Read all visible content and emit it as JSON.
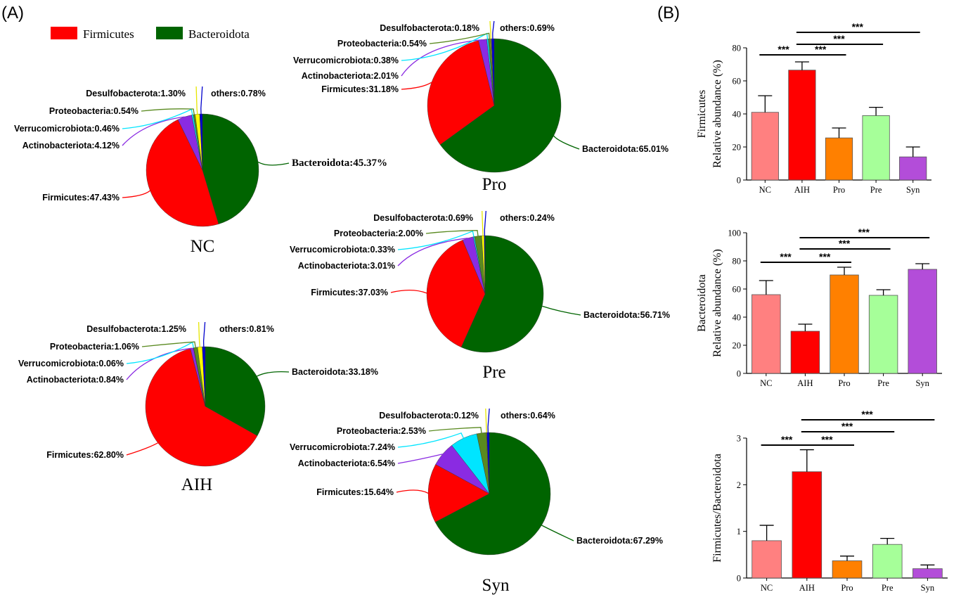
{
  "panels": {
    "a": "(A)",
    "b": "(B)"
  },
  "legend": [
    {
      "name": "Firmicutes",
      "color": "#ff0000"
    },
    {
      "name": "Bacteroidota",
      "color": "#006400"
    }
  ],
  "colors": {
    "Firmicutes": "#ff0000",
    "Bacteroidota": "#006400",
    "Actinobacteriota": "#8a2be2",
    "Verrucomicrobiota": "#00e5ff",
    "Proteobacteria": "#5a8a20",
    "Desulfobacterota": "#ffff00",
    "others": "#0000cd"
  },
  "chart_data": [
    {
      "type": "pie",
      "title": "NC",
      "slices": [
        {
          "label": "Bacteroidota:45.37%",
          "name": "Bacteroidota",
          "value": 45.37
        },
        {
          "label": "Firmicutes:47.43%",
          "name": "Firmicutes",
          "value": 47.43
        },
        {
          "label": "Actinobacteriota:4.12%",
          "name": "Actinobacteriota",
          "value": 4.12
        },
        {
          "label": "Verrucomicrobiota:0.46%",
          "name": "Verrucomicrobiota",
          "value": 0.46
        },
        {
          "label": "Proteobacteria:0.54%",
          "name": "Proteobacteria",
          "value": 0.54
        },
        {
          "label": "Desulfobacterota:1.30%",
          "name": "Desulfobacterota",
          "value": 1.3
        },
        {
          "label": "others:0.78%",
          "name": "others",
          "value": 0.78
        }
      ]
    },
    {
      "type": "pie",
      "title": "AIH",
      "slices": [
        {
          "label": "Bacteroidota:33.18%",
          "name": "Bacteroidota",
          "value": 33.18
        },
        {
          "label": "Firmicutes:62.80%",
          "name": "Firmicutes",
          "value": 62.8
        },
        {
          "label": "Actinobacteriota:0.84%",
          "name": "Actinobacteriota",
          "value": 0.84
        },
        {
          "label": "Verrucomicrobiota:0.06%",
          "name": "Verrucomicrobiota",
          "value": 0.06
        },
        {
          "label": "Proteobacteria:1.06%",
          "name": "Proteobacteria",
          "value": 1.06
        },
        {
          "label": "Desulfobacterota:1.25%",
          "name": "Desulfobacterota",
          "value": 1.25
        },
        {
          "label": "others:0.81%",
          "name": "others",
          "value": 0.81
        }
      ]
    },
    {
      "type": "pie",
      "title": "Pro",
      "slices": [
        {
          "label": "Bacteroidota:65.01%",
          "name": "Bacteroidota",
          "value": 65.01
        },
        {
          "label": "Firmicutes:31.18%",
          "name": "Firmicutes",
          "value": 31.18
        },
        {
          "label": "Actinobacteriota:2.01%",
          "name": "Actinobacteriota",
          "value": 2.01
        },
        {
          "label": "Verrucomicrobiota:0.38%",
          "name": "Verrucomicrobiota",
          "value": 0.38
        },
        {
          "label": "Proteobacteria:0.54%",
          "name": "Proteobacteria",
          "value": 0.54
        },
        {
          "label": "Desulfobacterota:0.18%",
          "name": "Desulfobacterota",
          "value": 0.18
        },
        {
          "label": "others:0.69%",
          "name": "others",
          "value": 0.69
        }
      ]
    },
    {
      "type": "pie",
      "title": "Pre",
      "slices": [
        {
          "label": "Bacteroidota:56.71%",
          "name": "Bacteroidota",
          "value": 56.71
        },
        {
          "label": "Firmicutes:37.03%",
          "name": "Firmicutes",
          "value": 37.03
        },
        {
          "label": "Actinobacteriota:3.01%",
          "name": "Actinobacteriota",
          "value": 3.01
        },
        {
          "label": "Verrucomicrobiota:0.33%",
          "name": "Verrucomicrobiota",
          "value": 0.33
        },
        {
          "label": "Proteobacteria:2.00%",
          "name": "Proteobacteria",
          "value": 2.0
        },
        {
          "label": "Desulfobacterota:0.69%",
          "name": "Desulfobacterota",
          "value": 0.69
        },
        {
          "label": "others:0.24%",
          "name": "others",
          "value": 0.24
        }
      ]
    },
    {
      "type": "pie",
      "title": "Syn",
      "slices": [
        {
          "label": "Bacteroidota:67.29%",
          "name": "Bacteroidota",
          "value": 67.29
        },
        {
          "label": "Firmicutes:15.64%",
          "name": "Firmicutes",
          "value": 15.64
        },
        {
          "label": "Actinobacteriota:6.54%",
          "name": "Actinobacteriota",
          "value": 6.54
        },
        {
          "label": "Verrucomicrobiota:7.24%",
          "name": "Verrucomicrobiota",
          "value": 7.24
        },
        {
          "label": "Proteobacteria:2.53%",
          "name": "Proteobacteria",
          "value": 2.53
        },
        {
          "label": "Desulfobacterota:0.12%",
          "name": "Desulfobacterota",
          "value": 0.12
        },
        {
          "label": "others:0.64%",
          "name": "others",
          "value": 0.64
        }
      ]
    },
    {
      "type": "bar",
      "ylabel": [
        "Firmicutes",
        "Relative abundance (%)"
      ],
      "categories": [
        "NC",
        "AIH",
        "Pro",
        "Pre",
        "Syn"
      ],
      "values": [
        41,
        66.5,
        25.5,
        39,
        14
      ],
      "errors": [
        10,
        5,
        6,
        5,
        6
      ],
      "ylim": [
        0,
        80
      ],
      "yticks": [
        "0",
        "20",
        "40",
        "60",
        "80"
      ],
      "bar_colors": [
        "#ff8080",
        "#ff0000",
        "#ff8000",
        "#a6ff99",
        "#b34dd9"
      ],
      "significance": [
        {
          "from": 0,
          "to": 1,
          "text": "***"
        },
        {
          "from": 1,
          "to": 2,
          "text": "***"
        },
        {
          "from": 1,
          "to": 3,
          "text": "***"
        },
        {
          "from": 1,
          "to": 4,
          "text": "***"
        }
      ]
    },
    {
      "type": "bar",
      "ylabel": [
        "Bacteroidota",
        "Relative abundance (%)"
      ],
      "categories": [
        "NC",
        "AIH",
        "Pro",
        "Pre",
        "Syn"
      ],
      "values": [
        56,
        30,
        70,
        55.5,
        74
      ],
      "errors": [
        10,
        5,
        5.5,
        4,
        4
      ],
      "ylim": [
        0,
        100
      ],
      "yticks": [
        "0",
        "20",
        "40",
        "60",
        "80",
        "100"
      ],
      "bar_colors": [
        "#ff8080",
        "#ff0000",
        "#ff8000",
        "#a6ff99",
        "#b34dd9"
      ],
      "significance": [
        {
          "from": 0,
          "to": 1,
          "text": "***"
        },
        {
          "from": 1,
          "to": 2,
          "text": "***"
        },
        {
          "from": 1,
          "to": 3,
          "text": "***"
        },
        {
          "from": 1,
          "to": 4,
          "text": "***"
        }
      ]
    },
    {
      "type": "bar",
      "ylabel": [
        "Firmicutes/Bacteroidota"
      ],
      "categories": [
        "NC",
        "AIH",
        "Pro",
        "Pre",
        "Syn"
      ],
      "values": [
        0.8,
        2.28,
        0.37,
        0.72,
        0.2
      ],
      "errors": [
        0.33,
        0.47,
        0.1,
        0.13,
        0.08
      ],
      "ylim": [
        0,
        3
      ],
      "yticks": [
        "0",
        "1",
        "2",
        "3"
      ],
      "bar_colors": [
        "#ff8080",
        "#ff0000",
        "#ff8000",
        "#a6ff99",
        "#b34dd9"
      ],
      "significance": [
        {
          "from": 0,
          "to": 1,
          "text": "***"
        },
        {
          "from": 1,
          "to": 2,
          "text": "***"
        },
        {
          "from": 1,
          "to": 3,
          "text": "***"
        },
        {
          "from": 1,
          "to": 4,
          "text": "***"
        }
      ]
    }
  ]
}
